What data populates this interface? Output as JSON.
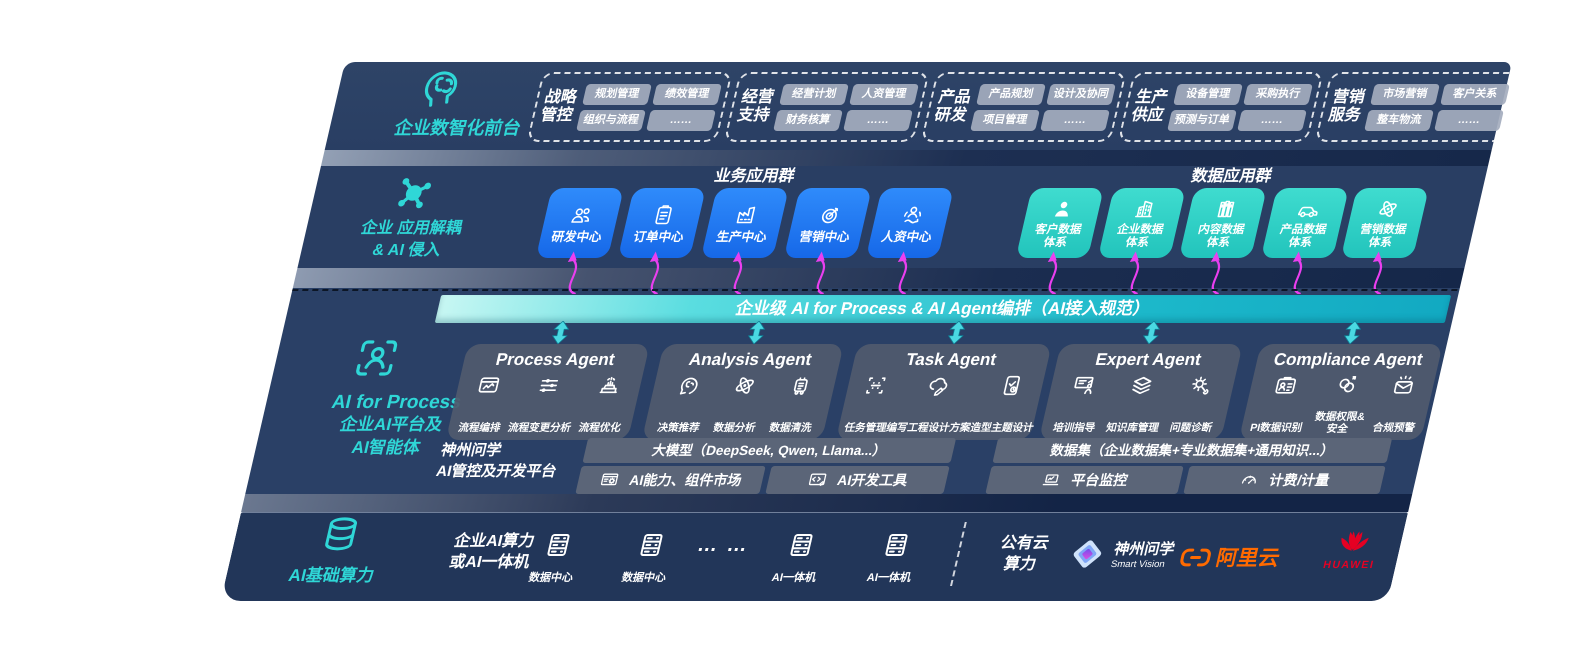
{
  "front_layer": {
    "label": "企业数智化前台",
    "groups": [
      {
        "name": "战略管控",
        "items": [
          "规划管理",
          "绩效管理",
          "组织与流程",
          "……"
        ]
      },
      {
        "name": "经营支持",
        "items": [
          "经营计划",
          "人资管理",
          "财务核算",
          "……"
        ]
      },
      {
        "name": "产品研发",
        "items": [
          "产品规划",
          "设计及协同",
          "项目管理",
          "……"
        ]
      },
      {
        "name": "生产供应",
        "items": [
          "设备管理",
          "采购执行",
          "预测与订单",
          "……"
        ]
      },
      {
        "name": "营销服务",
        "items": [
          "市场营销",
          "客户关系",
          "整车物流",
          "……"
        ]
      }
    ]
  },
  "app_layer": {
    "label_line1": "企业 应用解耦",
    "label_line2": "& AI 侵入",
    "business_group": {
      "title": "业务应用群",
      "boxes": [
        {
          "label": "研发中心",
          "icon": "team"
        },
        {
          "label": "订单中心",
          "icon": "clipboard"
        },
        {
          "label": "生产中心",
          "icon": "factory"
        },
        {
          "label": "营销中心",
          "icon": "target"
        },
        {
          "label": "人资中心",
          "icon": "hr"
        }
      ]
    },
    "data_group": {
      "title": "数据应用群",
      "boxes": [
        {
          "label": "客户数据体系",
          "icon": "person"
        },
        {
          "label": "企业数据体系",
          "icon": "building"
        },
        {
          "label": "内容数据体系",
          "icon": "books"
        },
        {
          "label": "产品数据体系",
          "icon": "car"
        },
        {
          "label": "营销数据体系",
          "icon": "atom"
        }
      ]
    }
  },
  "orchestration_bar": {
    "label": "企业级 AI for Process & AI Agent编排（AI接入规范）"
  },
  "agent_layer": {
    "label_title": "AI for Process",
    "label_line2": "企业AI平台及",
    "label_line3": "AI智能体",
    "agents": [
      {
        "title": "Process Agent",
        "items": [
          {
            "label": "流程编排",
            "icon": "window-chart"
          },
          {
            "label": "流程变更分析",
            "icon": "sliders"
          },
          {
            "label": "流程优化",
            "icon": "machine"
          }
        ]
      },
      {
        "title": "Analysis Agent",
        "items": [
          {
            "label": "决策推荐",
            "icon": "head-chat"
          },
          {
            "label": "数据分析",
            "icon": "atom"
          },
          {
            "label": "数据清洗",
            "icon": "robot"
          }
        ]
      },
      {
        "title": "Task Agent",
        "items": [
          {
            "label": "任务管理",
            "icon": "task-grid"
          },
          {
            "label": "编写工程设计方案",
            "icon": "cloud-pen"
          },
          {
            "label": "造型主题设计",
            "icon": "tablet-check"
          }
        ]
      },
      {
        "title": "Expert Agent",
        "items": [
          {
            "label": "培训指导",
            "icon": "training"
          },
          {
            "label": "知识库管理",
            "icon": "layers"
          },
          {
            "label": "问题诊断",
            "icon": "diagnose"
          }
        ]
      },
      {
        "title": "Compliance Agent",
        "items": [
          {
            "label": "PI数据识别",
            "icon": "idcard"
          },
          {
            "label": "数据权限&安全",
            "icon": "locklink"
          },
          {
            "label": "合规预警",
            "icon": "alertmail"
          }
        ]
      }
    ]
  },
  "platform_layer": {
    "label_line1": "神州问学",
    "label_line2": "AI管控及开发平台",
    "model_bar": "大模型（DeepSeek, Qwen, Llama...）",
    "left_cells": [
      {
        "label": "AI能力、组件市场",
        "icon": "win-gear"
      },
      {
        "label": "AI开发工具",
        "icon": "code-tool"
      }
    ],
    "dataset_bar": "数据集（企业数据集+专业数据集+通用知识...）",
    "right_cells": [
      {
        "label": "平台监控",
        "icon": "laptop"
      },
      {
        "label": "计费/计量",
        "icon": "gauge"
      }
    ]
  },
  "infra_layer": {
    "label": "AI基础算力",
    "compute_line1": "企业AI算力",
    "compute_line2": "或AI一体机",
    "nodes": [
      {
        "label": "数据中心",
        "icon": "rack"
      },
      {
        "label": "数据中心",
        "icon": "rack"
      },
      {
        "label": "… …",
        "icon": "dots"
      },
      {
        "label": "AI一体机",
        "icon": "rack"
      },
      {
        "label": "AI一体机",
        "icon": "rack"
      }
    ],
    "cloud_line1": "公有云",
    "cloud_line2": "算力",
    "vendors": [
      {
        "name": "神州问学",
        "sub": "Smart Vision",
        "logo": "shenzhou"
      },
      {
        "name": "阿里云",
        "logo": "alibaba"
      },
      {
        "name": "HUAWEI",
        "logo": "huawei"
      }
    ]
  },
  "colors": {
    "accent_teal": "#2fd7d7",
    "box_blue": "#1d78f2",
    "box_teal": "#2ed1c6",
    "arrow_magenta": "#ea3ff0",
    "orchestration_teal": "#1cb8ca",
    "panel_navy": "#2a4066",
    "alibaba_orange": "#ff6a00",
    "huawei_red": "#e60023"
  }
}
